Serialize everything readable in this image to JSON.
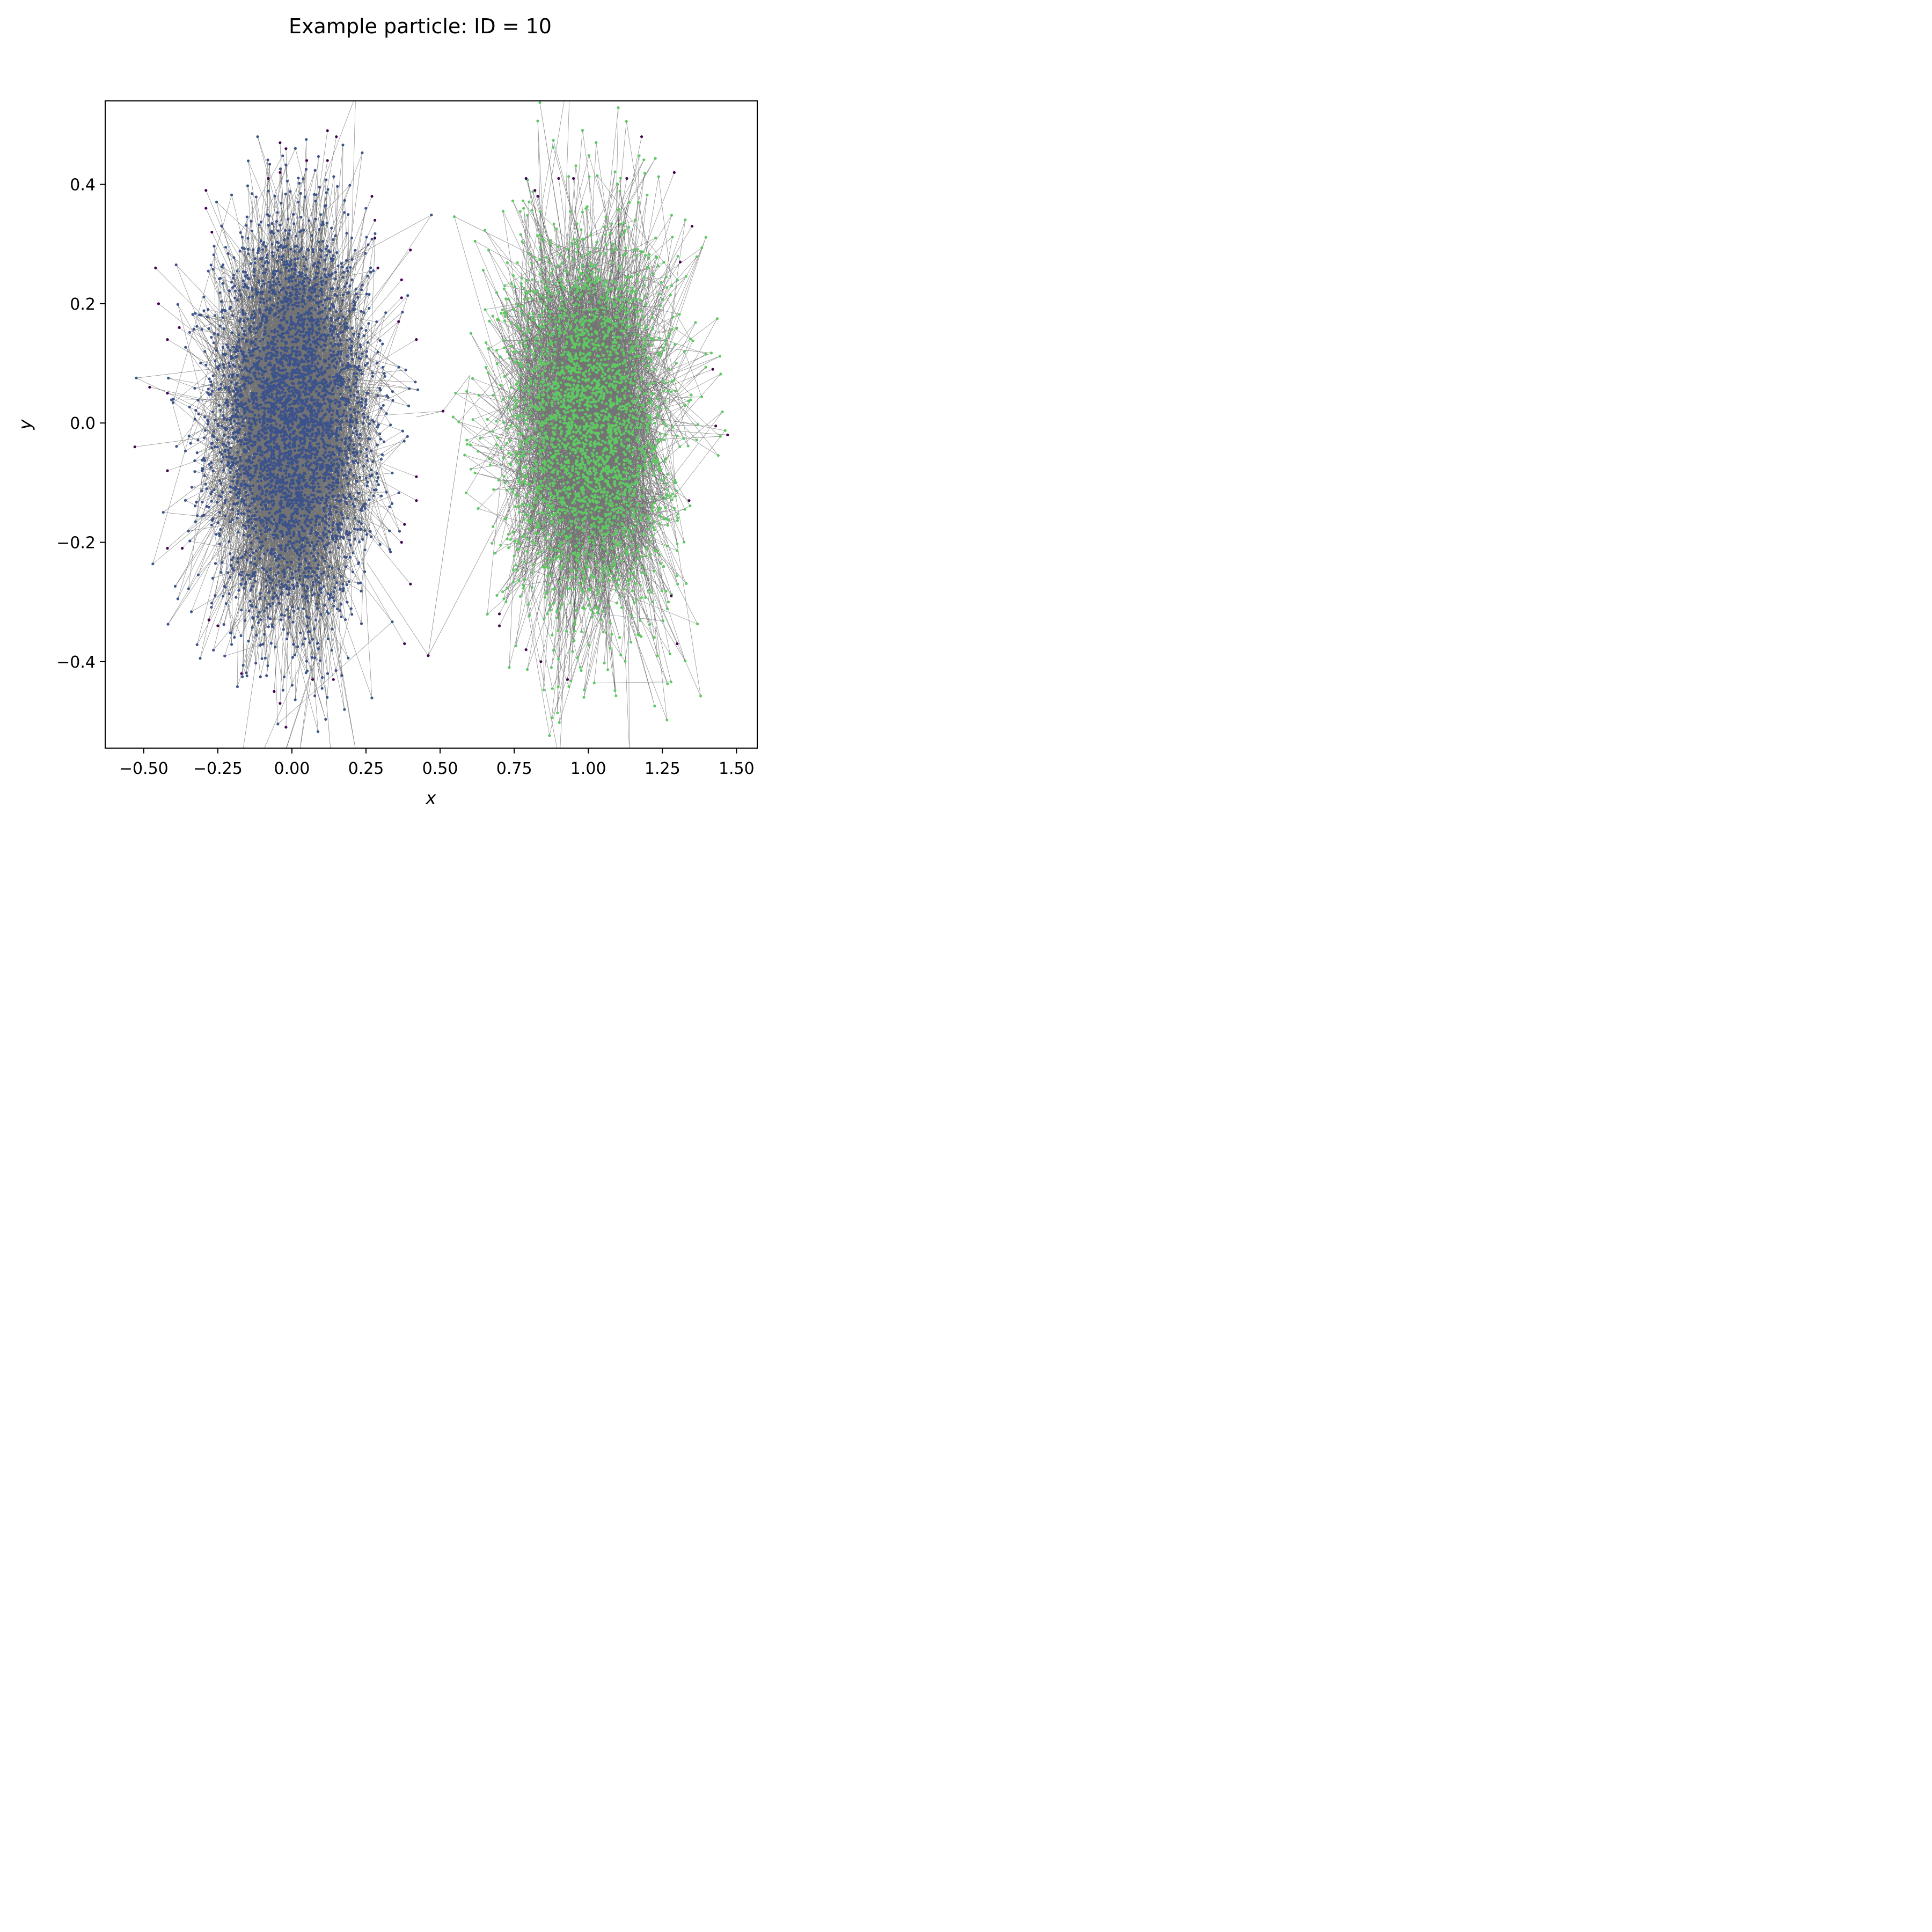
{
  "chart_data": {
    "type": "scatter",
    "title": "Example particle: ID = 10",
    "xlabel": "x",
    "ylabel": "y",
    "xlim": [
      -0.63,
      1.57
    ],
    "ylim": [
      -0.545,
      0.54
    ],
    "xticks": [
      -0.5,
      -0.25,
      0.0,
      0.25,
      0.5,
      0.75,
      1.0,
      1.25,
      1.5
    ],
    "xtick_labels": [
      "−0.50",
      "−0.25",
      "0.00",
      "0.25",
      "0.50",
      "0.75",
      "1.00",
      "1.25",
      "1.50"
    ],
    "yticks": [
      -0.4,
      -0.2,
      0.0,
      0.2,
      0.4
    ],
    "ytick_labels": [
      "−0.4",
      "−0.2",
      "0.0",
      "0.2",
      "0.4"
    ],
    "grid": false,
    "legend": "none",
    "colors": {
      "cluster_1": "#3b528b",
      "cluster_2": "#5ec962",
      "outlier": "#440154",
      "trajectory_line": "#000000"
    },
    "clusters": [
      {
        "center": [
          0.0,
          0.0
        ],
        "std": [
          0.13,
          0.16
        ],
        "color": "#3b528b",
        "n_points": 4200
      },
      {
        "center": [
          1.0,
          0.0
        ],
        "std": [
          0.14,
          0.16
        ],
        "color": "#5ec962",
        "n_points": 3000
      }
    ],
    "outliers": [
      [
        0.12,
        0.49
      ],
      [
        0.15,
        0.48
      ],
      [
        -0.04,
        0.47
      ],
      [
        -0.02,
        0.46
      ],
      [
        0.05,
        0.44
      ],
      [
        0.12,
        0.44
      ],
      [
        -0.08,
        0.41
      ],
      [
        -0.04,
        0.42
      ],
      [
        0.27,
        0.38
      ],
      [
        0.28,
        0.34
      ],
      [
        -0.29,
        0.39
      ],
      [
        -0.29,
        0.36
      ],
      [
        0.28,
        0.31
      ],
      [
        -0.27,
        0.32
      ],
      [
        0.29,
        0.26
      ],
      [
        0.4,
        0.29
      ],
      [
        0.37,
        0.24
      ],
      [
        -0.46,
        0.26
      ],
      [
        -0.45,
        0.2
      ],
      [
        -0.38,
        0.16
      ],
      [
        0.37,
        0.21
      ],
      [
        0.36,
        0.17
      ],
      [
        -0.42,
        0.14
      ],
      [
        0.42,
        0.14
      ],
      [
        -0.48,
        0.06
      ],
      [
        -0.42,
        0.05
      ],
      [
        -0.53,
        -0.04
      ],
      [
        -0.42,
        -0.08
      ],
      [
        0.42,
        -0.09
      ],
      [
        0.42,
        -0.13
      ],
      [
        0.38,
        -0.17
      ],
      [
        -0.42,
        -0.21
      ],
      [
        -0.37,
        -0.21
      ],
      [
        0.37,
        -0.2
      ],
      [
        -0.28,
        -0.33
      ],
      [
        -0.25,
        -0.34
      ],
      [
        0.4,
        -0.27
      ],
      [
        0.38,
        -0.37
      ],
      [
        -0.17,
        -0.42
      ],
      [
        0.07,
        -0.43
      ],
      [
        0.14,
        -0.43
      ],
      [
        -0.06,
        -0.45
      ],
      [
        -0.04,
        -0.47
      ],
      [
        -0.02,
        -0.51
      ],
      [
        0.46,
        -0.39
      ],
      [
        0.51,
        0.02
      ],
      [
        0.79,
        0.41
      ],
      [
        0.82,
        0.39
      ],
      [
        0.9,
        0.41
      ],
      [
        0.95,
        0.41
      ],
      [
        1.13,
        0.41
      ],
      [
        1.18,
        0.48
      ],
      [
        1.29,
        0.42
      ],
      [
        1.35,
        0.33
      ],
      [
        1.31,
        0.27
      ],
      [
        1.42,
        0.09
      ],
      [
        1.43,
        -0.005
      ],
      [
        1.47,
        -0.02
      ],
      [
        1.34,
        -0.13
      ],
      [
        1.28,
        -0.29
      ],
      [
        1.3,
        -0.37
      ],
      [
        0.7,
        -0.32
      ],
      [
        0.7,
        -0.34
      ],
      [
        0.79,
        -0.38
      ],
      [
        0.84,
        -0.4
      ],
      [
        0.93,
        -0.43
      ],
      [
        0.83,
        0.38
      ]
    ],
    "trajectory_bridge": [
      [
        0.42,
        0.01
      ],
      [
        0.51,
        0.02
      ],
      [
        0.6,
        0.08
      ],
      [
        0.46,
        -0.39
      ],
      [
        0.68,
        -0.18
      ]
    ]
  }
}
